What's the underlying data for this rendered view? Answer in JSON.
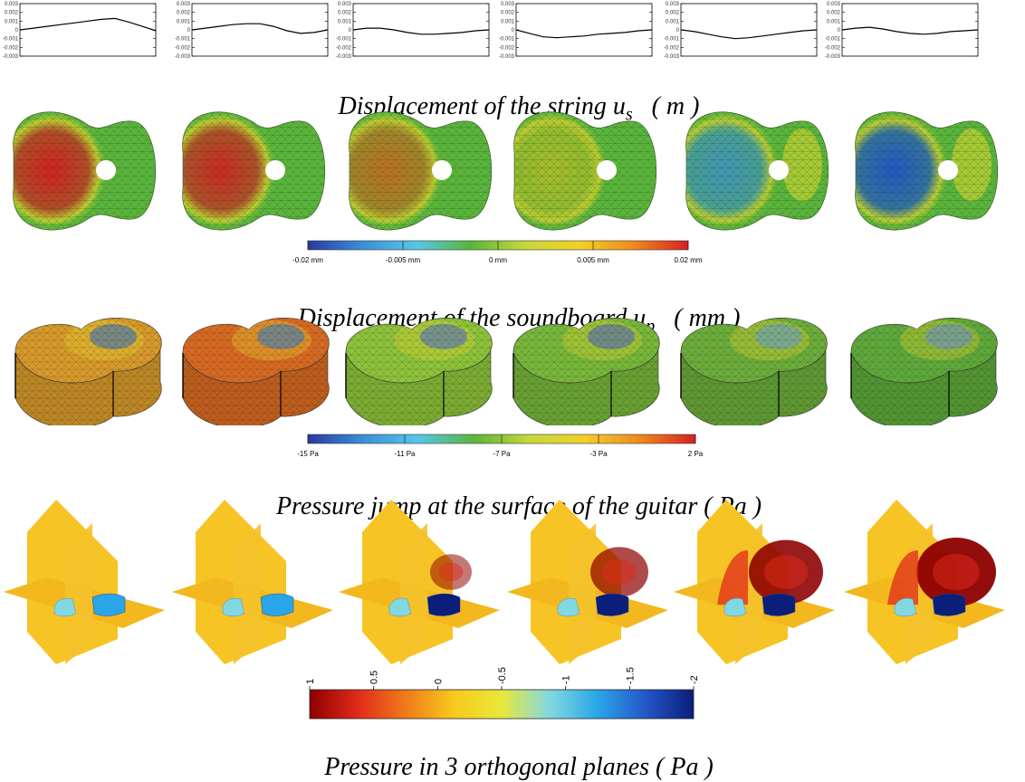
{
  "captions": {
    "string": {
      "text": "Displacement of the string u",
      "sub": "s",
      "unit": "   ( m )"
    },
    "soundboard": {
      "text": "Displacement of the soundboard u",
      "sub": "p",
      "unit": "   ( mm )"
    },
    "pressure_jump": {
      "text": "Pressure jump at the surface of the guitar ( Pa )"
    },
    "planes": {
      "text": "Pressure in 3 orthogonal planes ( Pa )"
    }
  },
  "string_plots": {
    "ytick_labels": [
      "0.003",
      "0.002",
      "0.001",
      "0",
      "-0.001",
      "-0.002",
      "-0.003"
    ],
    "ylim": [
      -0.003,
      0.003
    ],
    "panels": [
      {
        "x": [
          0,
          0.1,
          0.2,
          0.3,
          0.4,
          0.5,
          0.6,
          0.7,
          0.8,
          0.9,
          1.0
        ],
        "y": [
          0,
          0.0002,
          0.0004,
          0.0006,
          0.0008,
          0.001,
          0.0012,
          0.0013,
          0.0009,
          0.0004,
          -0.0001
        ]
      },
      {
        "x": [
          0,
          0.1,
          0.2,
          0.3,
          0.4,
          0.5,
          0.6,
          0.7,
          0.8,
          0.9,
          1.0
        ],
        "y": [
          0,
          0.0002,
          0.0004,
          0.0006,
          0.0007,
          0.0007,
          0.0004,
          -0.0001,
          -0.0004,
          -0.0003,
          0
        ]
      },
      {
        "x": [
          0,
          0.1,
          0.2,
          0.3,
          0.4,
          0.5,
          0.6,
          0.7,
          0.8,
          0.9,
          1.0
        ],
        "y": [
          0,
          0.0002,
          0.0002,
          0,
          -0.0003,
          -0.0005,
          -0.0005,
          -0.0004,
          -0.0003,
          -0.0001,
          0
        ]
      },
      {
        "x": [
          0,
          0.1,
          0.2,
          0.3,
          0.4,
          0.5,
          0.6,
          0.7,
          0.8,
          0.9,
          1.0
        ],
        "y": [
          0,
          -0.0004,
          -0.0008,
          -0.0009,
          -0.0008,
          -0.0007,
          -0.0005,
          -0.0004,
          -0.0003,
          -0.0001,
          0
        ]
      },
      {
        "x": [
          0,
          0.1,
          0.2,
          0.3,
          0.4,
          0.5,
          0.6,
          0.7,
          0.8,
          0.9,
          1.0
        ],
        "y": [
          0,
          -0.0002,
          -0.0005,
          -0.0008,
          -0.001,
          -0.0009,
          -0.0007,
          -0.0005,
          -0.0003,
          -0.0001,
          0
        ]
      },
      {
        "x": [
          0,
          0.1,
          0.2,
          0.3,
          0.4,
          0.5,
          0.6,
          0.7,
          0.8,
          0.9,
          1.0
        ],
        "y": [
          0,
          0.0002,
          0.0003,
          0.0001,
          -0.0002,
          -0.0004,
          -0.0005,
          -0.0004,
          -0.0002,
          -0.0001,
          0
        ]
      }
    ]
  },
  "soundboard_colorbar": {
    "labels": [
      "-0.02 mm",
      "-0.005 mm",
      "0 mm",
      "0.005 mm",
      "0.02 mm"
    ],
    "panels": [
      {
        "blob": "#d62020",
        "strength": 1.0
      },
      {
        "blob": "#d62020",
        "strength": 0.95
      },
      {
        "blob": "#e0591a",
        "strength": 0.75
      },
      {
        "blob": "#e8c41e",
        "strength": 0.55
      },
      {
        "blob": "#3a8fd8",
        "strength": 0.8
      },
      {
        "blob": "#2456c8",
        "strength": 1.0
      }
    ]
  },
  "pressure_colorbar": {
    "labels": [
      "-15 Pa",
      "-11 Pa",
      "-7 Pa",
      "-3 Pa",
      "2 Pa"
    ],
    "panels": [
      {
        "base": "#d89a2a",
        "accent": "#2456c8"
      },
      {
        "base": "#d96a22",
        "accent": "#2456c8"
      },
      {
        "base": "#8ec43a",
        "accent": "#2d62d6"
      },
      {
        "base": "#78b83a",
        "accent": "#2456c8"
      },
      {
        "base": "#6cae3a",
        "accent": "#3a8fd8"
      },
      {
        "base": "#5eaa3a",
        "accent": "#3a7ed8"
      }
    ]
  },
  "planes_colorbar": {
    "labels": [
      "1",
      "0.5",
      "0",
      "-0.5",
      "-1",
      "-1.5",
      "-2"
    ],
    "panels": [
      {
        "red": 0.0
      },
      {
        "red": 0.0
      },
      {
        "red": 0.3
      },
      {
        "red": 0.6
      },
      {
        "red": 0.9
      },
      {
        "red": 1.0
      }
    ]
  },
  "colors": {
    "jet": [
      "#2a3a9e",
      "#3a8fd8",
      "#56c6e8",
      "#5ab53c",
      "#c6d83a",
      "#f2d027",
      "#ef8a1e",
      "#d62020"
    ],
    "planes": [
      "#8e0000",
      "#e02a1a",
      "#f07a1a",
      "#f7c91c",
      "#e8e83a",
      "#82d8e0",
      "#2aa6e8",
      "#2456c8",
      "#0a1e7a"
    ]
  }
}
